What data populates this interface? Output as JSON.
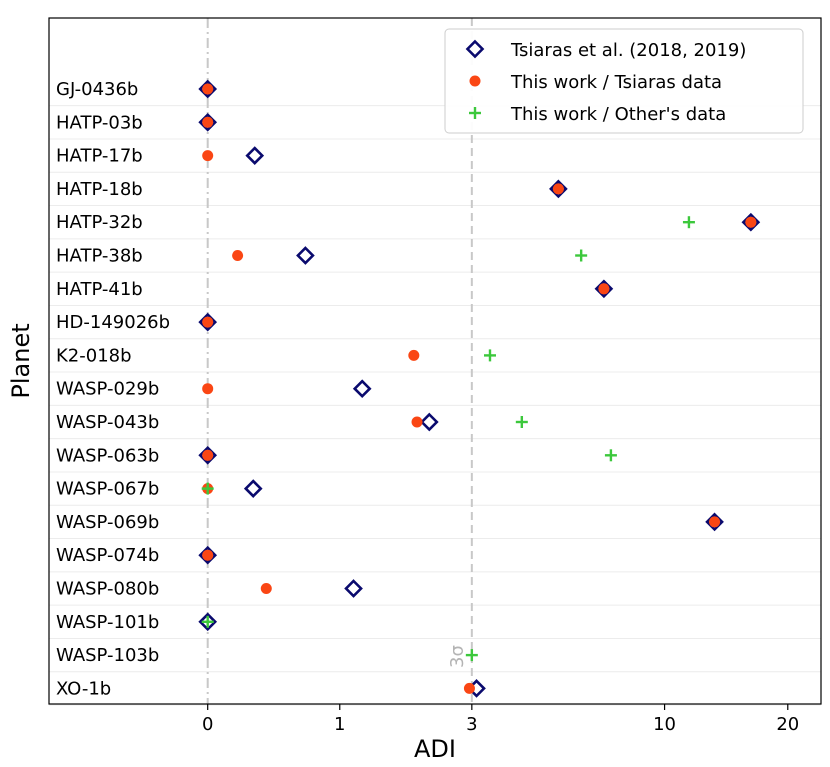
{
  "chart_data": {
    "type": "scatter",
    "xlabel": "ADI",
    "ylabel": "Planet",
    "x_ticks": [
      "0",
      "1",
      "3",
      "10",
      "20"
    ],
    "x_tick_values": [
      0,
      1,
      3,
      10,
      20
    ],
    "xlim": [
      -1.3,
      24
    ],
    "reference_lines": [
      {
        "x": 0,
        "style": "dash-dot"
      },
      {
        "x": 3,
        "style": "dashed",
        "label": "3σ"
      }
    ],
    "colors": {
      "tsiaras": "#0a0a6e",
      "this_work_tsiaras": "#fa4614",
      "this_work_other": "#3cc83c"
    },
    "legend": {
      "position": "top-right",
      "entries": [
        {
          "key": "tsiaras",
          "label": "Tsiaras et al. (2018, 2019)",
          "marker": "open-diamond"
        },
        {
          "key": "this_work_tsiaras",
          "label": "This work / Tsiaras data",
          "marker": "circle"
        },
        {
          "key": "this_work_other",
          "label": "This work / Other's data",
          "marker": "plus"
        }
      ]
    },
    "planets": [
      "GJ-0436b",
      "HATP-03b",
      "HATP-17b",
      "HATP-18b",
      "HATP-32b",
      "HATP-38b",
      "HATP-41b",
      "HD-149026b",
      "K2-018b",
      "WASP-029b",
      "WASP-043b",
      "WASP-063b",
      "WASP-067b",
      "WASP-069b",
      "WASP-074b",
      "WASP-080b",
      "WASP-101b",
      "WASP-103b",
      "XO-1b"
    ],
    "series": [
      {
        "name": "Tsiaras et al. (2018, 2019)",
        "key": "tsiaras",
        "values": [
          0,
          0,
          0.28,
          5.3,
          16.3,
          0.67,
          7.0,
          0,
          null,
          1.25,
          2.2,
          0,
          0.27,
          13.3,
          0,
          1.15,
          0,
          null,
          3.1
        ]
      },
      {
        "name": "This work / Tsiaras data",
        "key": "this_work_tsiaras",
        "values": [
          0,
          0,
          0,
          5.3,
          16.3,
          0.17,
          7.0,
          0,
          1.95,
          0,
          2.0,
          0,
          0,
          13.3,
          0,
          0.36,
          null,
          null,
          2.95
        ]
      },
      {
        "name": "This work / Other's data",
        "key": "this_work_other",
        "values": [
          null,
          null,
          null,
          null,
          11.5,
          6.1,
          null,
          null,
          3.4,
          null,
          4.2,
          7.3,
          0,
          null,
          null,
          null,
          0,
          3.0,
          null
        ]
      }
    ]
  }
}
